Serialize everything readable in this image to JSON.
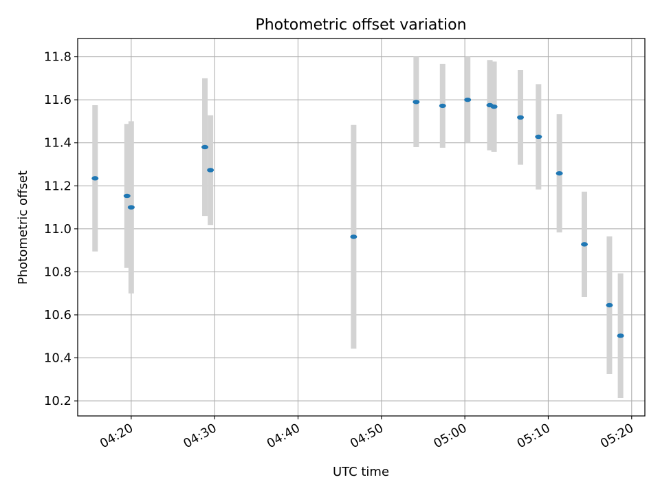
{
  "chart_data": {
    "type": "scatter",
    "title": "Photometric offset variation",
    "xlabel": "UTC time",
    "ylabel": "Photometric offset",
    "grid": true,
    "xlim": [
      "04:13:35",
      "05:21:35"
    ],
    "ylim": [
      10.13,
      11.885
    ],
    "xticks": [
      "04:20",
      "04:30",
      "04:40",
      "04:50",
      "05:00",
      "05:10",
      "05:20"
    ],
    "yticks": [
      "10.2",
      "10.4",
      "10.6",
      "10.8",
      "11.0",
      "11.2",
      "11.4",
      "11.6",
      "11.8"
    ],
    "marker_color": "#1f77b4",
    "errorbar_color": "#d3d3d3",
    "points": [
      {
        "x": "04:15:40",
        "y": 11.235,
        "yerr": 0.34
      },
      {
        "x": "04:19:30",
        "y": 11.153,
        "yerr": 0.335
      },
      {
        "x": "04:20:00",
        "y": 11.1,
        "yerr": 0.4
      },
      {
        "x": "04:28:50",
        "y": 11.38,
        "yerr": 0.32
      },
      {
        "x": "04:29:30",
        "y": 11.273,
        "yerr": 0.255
      },
      {
        "x": "04:46:40",
        "y": 10.963,
        "yerr": 0.52
      },
      {
        "x": "04:54:10",
        "y": 11.59,
        "yerr": 0.21
      },
      {
        "x": "04:57:20",
        "y": 11.572,
        "yerr": 0.195
      },
      {
        "x": "05:00:20",
        "y": 11.6,
        "yerr": 0.2
      },
      {
        "x": "05:03:00",
        "y": 11.575,
        "yerr": 0.21
      },
      {
        "x": "05:03:30",
        "y": 11.568,
        "yerr": 0.21
      },
      {
        "x": "05:06:40",
        "y": 11.518,
        "yerr": 0.22
      },
      {
        "x": "05:08:50",
        "y": 11.428,
        "yerr": 0.245
      },
      {
        "x": "05:11:20",
        "y": 11.258,
        "yerr": 0.275
      },
      {
        "x": "05:14:20",
        "y": 10.928,
        "yerr": 0.245
      },
      {
        "x": "05:17:20",
        "y": 10.645,
        "yerr": 0.32
      },
      {
        "x": "05:18:40",
        "y": 10.503,
        "yerr": 0.29
      }
    ]
  }
}
